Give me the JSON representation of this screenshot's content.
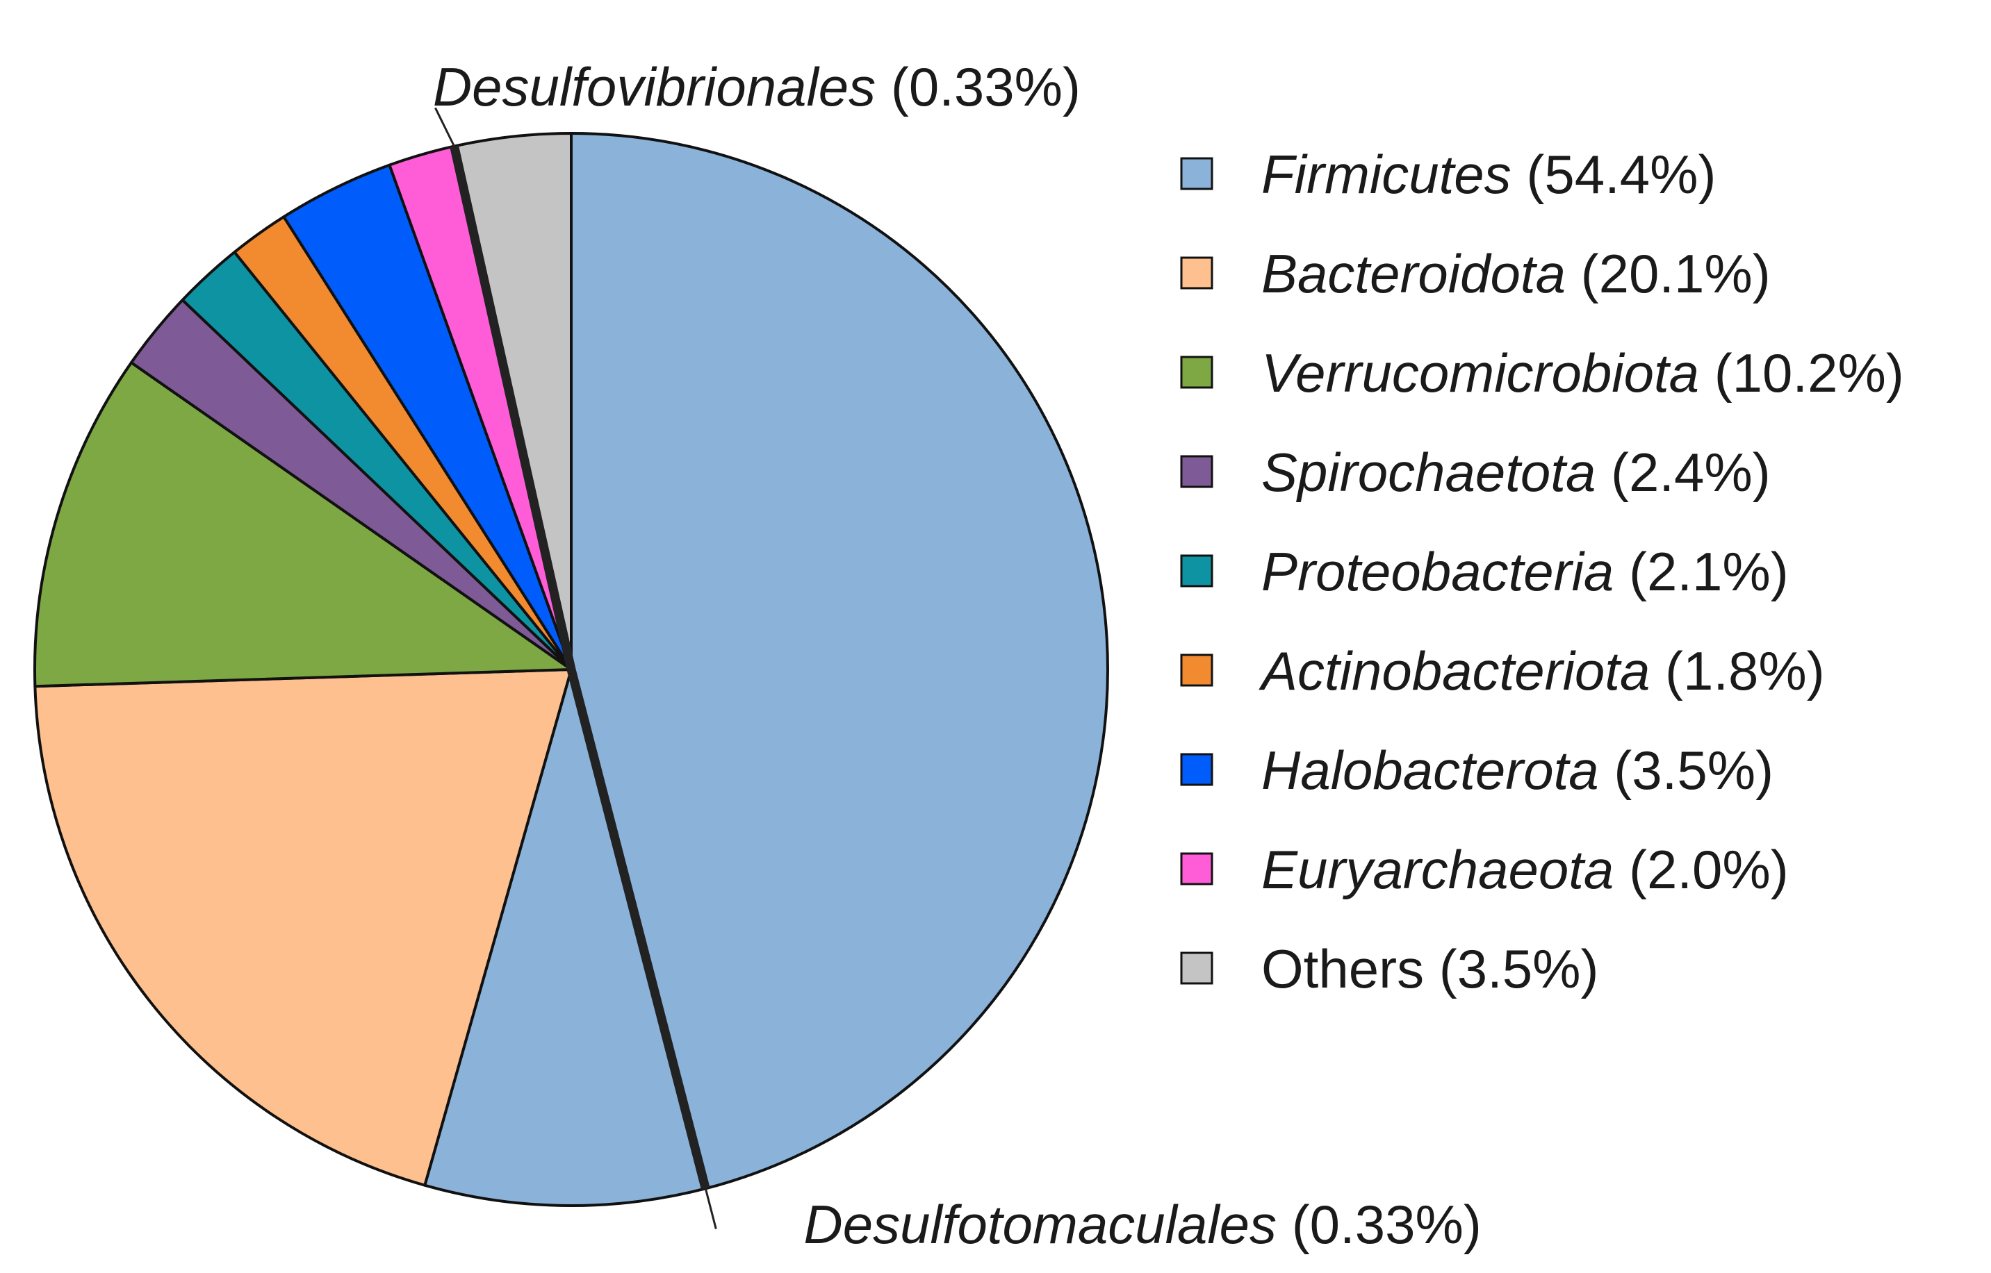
{
  "chart_data": {
    "type": "pie",
    "title": "",
    "slices": [
      {
        "name": "Firmicutes",
        "percent": 54.4,
        "value": 54.4,
        "color": "#8BB3D9",
        "italic": true
      },
      {
        "name": "Bacteroidota",
        "percent": 20.1,
        "value": 20.1,
        "color": "#FDC08E",
        "italic": true
      },
      {
        "name": "Verrucomicrobiota",
        "percent": 10.2,
        "value": 10.2,
        "color": "#7DA844",
        "italic": true
      },
      {
        "name": "Spirochaetota",
        "percent": 2.4,
        "value": 2.4,
        "color": "#7E5A96",
        "italic": true
      },
      {
        "name": "Proteobacteria",
        "percent": 2.1,
        "value": 2.1,
        "color": "#0E93A3",
        "italic": true
      },
      {
        "name": "Actinobacteriota",
        "percent": 1.8,
        "value": 1.8,
        "color": "#F28A30",
        "italic": true
      },
      {
        "name": "Halobacterota",
        "percent": 3.5,
        "value": 3.5,
        "color": "#005CFA",
        "italic": true
      },
      {
        "name": "Euryarchaeota",
        "percent": 2.0,
        "value": 2.0,
        "color": "#FF5DD8",
        "italic": true
      },
      {
        "name": "Others",
        "percent": 3.5,
        "value": 3.5,
        "color": "#C4C4C4",
        "italic": false
      }
    ],
    "legend_entries": [
      {
        "taxon": "Firmicutes",
        "pct": " (54.4%)"
      },
      {
        "taxon": "Bacteroidota",
        "pct": " (20.1%)"
      },
      {
        "taxon": "Verrucomicrobiota",
        "pct": " (10.2%)"
      },
      {
        "taxon": "Spirochaetota",
        "pct": " (2.4%)"
      },
      {
        "taxon": "Proteobacteria",
        "pct": " (2.1%)"
      },
      {
        "taxon": "Actinobacteriota",
        "pct": " (1.8%)"
      },
      {
        "taxon": "Halobacterota",
        "pct": " (3.5%)"
      },
      {
        "taxon": "Euryarchaeota",
        "pct": " (2.0%)"
      },
      {
        "taxon": "",
        "pct": "Others (3.5%)"
      }
    ],
    "callouts": [
      {
        "name": "Desulfovibrionales",
        "pct": " (0.33%)",
        "percent": 0.33
      },
      {
        "name": "Desulfotomaculales",
        "pct": " (0.33%)",
        "percent": 0.33
      }
    ],
    "legend_position": "right"
  }
}
